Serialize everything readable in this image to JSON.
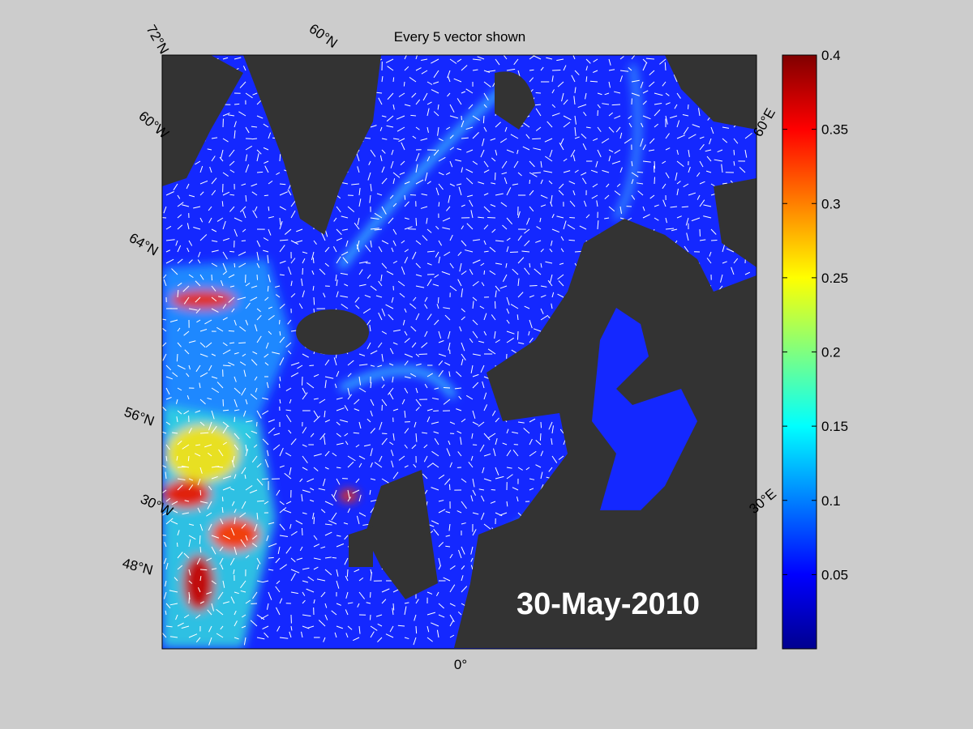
{
  "title": "Every 5 vector shown",
  "date_label": "30-May-2010",
  "graticule_labels": [
    "72°N",
    "60°N",
    "60°W",
    "64°N",
    "56°N",
    "30°W",
    "48°N",
    "0°",
    "60°E",
    "30°E"
  ],
  "colorbar": {
    "clim": [
      0,
      0.4
    ],
    "ticks": [
      0.05,
      0.1,
      0.15,
      0.2,
      0.25,
      0.3,
      0.35,
      0.4
    ]
  }
}
